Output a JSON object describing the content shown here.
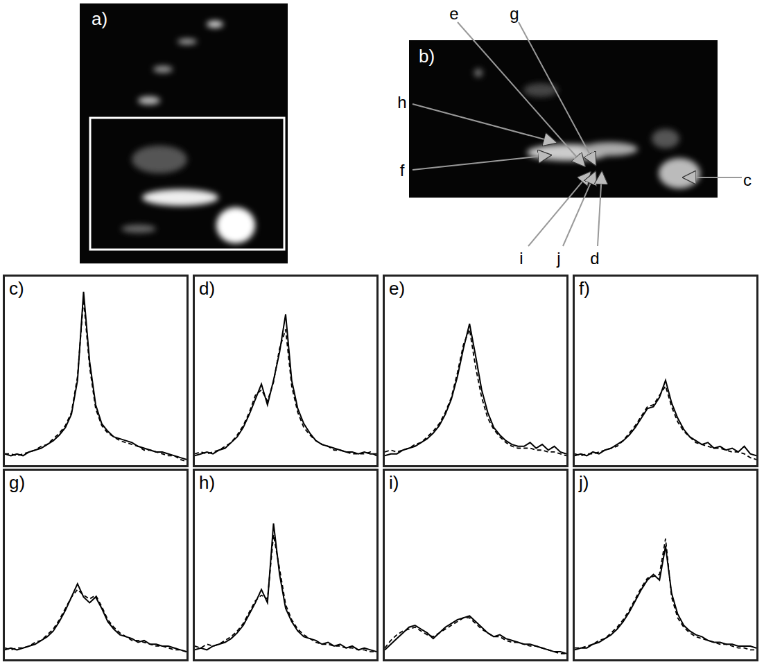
{
  "images": [
    {
      "label": "a)"
    },
    {
      "label": "b)",
      "arrows": [
        "e",
        "g",
        "h",
        "f",
        "c",
        "i",
        "j",
        "d"
      ]
    }
  ],
  "chart_data": [
    {
      "type": "line",
      "title": "c)",
      "x": [
        0,
        1,
        2,
        3,
        4,
        5,
        6,
        7,
        8,
        9,
        10,
        11,
        12,
        13,
        14,
        15,
        16,
        17,
        18,
        19,
        20,
        21,
        22,
        23,
        24,
        25,
        26,
        27,
        28,
        29,
        30
      ],
      "xlim": [
        0,
        30
      ],
      "ylim": [
        0,
        1
      ],
      "tick_labels": false,
      "series": [
        {
          "color": "#000000",
          "line_style": "solid",
          "values": [
            0.06,
            0.05,
            0.06,
            0.05,
            0.07,
            0.08,
            0.09,
            0.11,
            0.13,
            0.16,
            0.2,
            0.27,
            0.45,
            0.92,
            0.55,
            0.32,
            0.22,
            0.18,
            0.15,
            0.14,
            0.13,
            0.12,
            0.1,
            0.09,
            0.08,
            0.07,
            0.07,
            0.06,
            0.05,
            0.04,
            0.03
          ]
        },
        {
          "color": "#000000",
          "line_style": "dashed",
          "values": [
            0.06,
            0.06,
            0.05,
            0.06,
            0.07,
            0.08,
            0.1,
            0.11,
            0.14,
            0.17,
            0.21,
            0.28,
            0.47,
            0.88,
            0.52,
            0.3,
            0.21,
            0.17,
            0.15,
            0.13,
            0.12,
            0.11,
            0.1,
            0.08,
            0.08,
            0.07,
            0.06,
            0.05,
            0.05,
            0.03,
            0.02
          ]
        }
      ]
    },
    {
      "type": "line",
      "title": "d)",
      "x": [
        0,
        1,
        2,
        3,
        4,
        5,
        6,
        7,
        8,
        9,
        10,
        11,
        12,
        13,
        14,
        15,
        16,
        17,
        18,
        19,
        20,
        21,
        22,
        23,
        24,
        25,
        26,
        27,
        28,
        29,
        30
      ],
      "xlim": [
        0,
        30
      ],
      "ylim": [
        0,
        1
      ],
      "tick_labels": false,
      "series": [
        {
          "color": "#000000",
          "line_style": "solid",
          "values": [
            0.05,
            0.06,
            0.07,
            0.06,
            0.08,
            0.09,
            0.12,
            0.15,
            0.2,
            0.27,
            0.35,
            0.43,
            0.32,
            0.45,
            0.6,
            0.8,
            0.45,
            0.3,
            0.22,
            0.17,
            0.13,
            0.11,
            0.1,
            0.09,
            0.08,
            0.07,
            0.07,
            0.06,
            0.07,
            0.06,
            0.06
          ]
        },
        {
          "color": "#000000",
          "line_style": "dashed",
          "values": [
            0.06,
            0.07,
            0.06,
            0.07,
            0.08,
            0.1,
            0.12,
            0.16,
            0.21,
            0.28,
            0.37,
            0.4,
            0.34,
            0.44,
            0.62,
            0.72,
            0.42,
            0.28,
            0.2,
            0.16,
            0.13,
            0.11,
            0.1,
            0.08,
            0.08,
            0.07,
            0.06,
            0.06,
            0.06,
            0.07,
            0.05
          ]
        }
      ]
    },
    {
      "type": "line",
      "title": "e)",
      "x": [
        0,
        1,
        2,
        3,
        4,
        5,
        6,
        7,
        8,
        9,
        10,
        11,
        12,
        13,
        14,
        15,
        16,
        17,
        18,
        19,
        20,
        21,
        22,
        23,
        24,
        25,
        26,
        27,
        28,
        29,
        30
      ],
      "xlim": [
        0,
        30
      ],
      "ylim": [
        0,
        1
      ],
      "tick_labels": false,
      "series": [
        {
          "color": "#000000",
          "line_style": "solid",
          "values": [
            0.05,
            0.06,
            0.06,
            0.08,
            0.09,
            0.1,
            0.12,
            0.14,
            0.17,
            0.21,
            0.27,
            0.35,
            0.47,
            0.62,
            0.75,
            0.58,
            0.4,
            0.28,
            0.2,
            0.16,
            0.13,
            0.11,
            0.1,
            0.1,
            0.12,
            0.09,
            0.11,
            0.08,
            0.1,
            0.07,
            0.06
          ]
        },
        {
          "color": "#000000",
          "line_style": "dashed",
          "values": [
            0.07,
            0.08,
            0.07,
            0.08,
            0.09,
            0.11,
            0.12,
            0.15,
            0.18,
            0.22,
            0.28,
            0.36,
            0.49,
            0.64,
            0.72,
            0.52,
            0.36,
            0.25,
            0.19,
            0.15,
            0.12,
            0.1,
            0.09,
            0.09,
            0.09,
            0.08,
            0.08,
            0.07,
            0.07,
            0.06,
            0.05
          ]
        }
      ]
    },
    {
      "type": "line",
      "title": "f)",
      "x": [
        0,
        1,
        2,
        3,
        4,
        5,
        6,
        7,
        8,
        9,
        10,
        11,
        12,
        13,
        14,
        15,
        16,
        17,
        18,
        19,
        20,
        21,
        22,
        23,
        24,
        25,
        26,
        27,
        28,
        29,
        30
      ],
      "xlim": [
        0,
        30
      ],
      "ylim": [
        0,
        1
      ],
      "tick_labels": false,
      "series": [
        {
          "color": "#000000",
          "line_style": "solid",
          "values": [
            0.05,
            0.06,
            0.05,
            0.07,
            0.06,
            0.08,
            0.09,
            0.11,
            0.13,
            0.16,
            0.2,
            0.25,
            0.3,
            0.31,
            0.36,
            0.45,
            0.33,
            0.25,
            0.19,
            0.15,
            0.13,
            0.11,
            0.12,
            0.09,
            0.1,
            0.08,
            0.09,
            0.07,
            0.1,
            0.06,
            0.05
          ]
        },
        {
          "color": "#000000",
          "line_style": "dashed",
          "values": [
            0.06,
            0.05,
            0.06,
            0.06,
            0.07,
            0.08,
            0.09,
            0.1,
            0.13,
            0.17,
            0.21,
            0.26,
            0.31,
            0.32,
            0.37,
            0.42,
            0.31,
            0.23,
            0.18,
            0.15,
            0.12,
            0.11,
            0.1,
            0.09,
            0.09,
            0.08,
            0.07,
            0.07,
            0.06,
            0.04,
            0.03
          ]
        }
      ]
    },
    {
      "type": "line",
      "title": "g)",
      "x": [
        0,
        1,
        2,
        3,
        4,
        5,
        6,
        7,
        8,
        9,
        10,
        11,
        12,
        13,
        14,
        15,
        16,
        17,
        18,
        19,
        20,
        21,
        22,
        23,
        24,
        25,
        26,
        27,
        28,
        29,
        30
      ],
      "xlim": [
        0,
        30
      ],
      "ylim": [
        0,
        1
      ],
      "tick_labels": false,
      "series": [
        {
          "color": "#000000",
          "line_style": "solid",
          "values": [
            0.05,
            0.06,
            0.05,
            0.06,
            0.07,
            0.08,
            0.1,
            0.12,
            0.15,
            0.2,
            0.26,
            0.33,
            0.4,
            0.33,
            0.3,
            0.33,
            0.27,
            0.2,
            0.16,
            0.13,
            0.12,
            0.11,
            0.09,
            0.1,
            0.08,
            0.08,
            0.07,
            0.07,
            0.06,
            0.05,
            0.04
          ]
        },
        {
          "color": "#000000",
          "line_style": "dashed",
          "values": [
            0.06,
            0.05,
            0.06,
            0.06,
            0.07,
            0.09,
            0.1,
            0.13,
            0.16,
            0.21,
            0.27,
            0.33,
            0.37,
            0.34,
            0.32,
            0.34,
            0.28,
            0.21,
            0.17,
            0.14,
            0.12,
            0.1,
            0.1,
            0.09,
            0.08,
            0.07,
            0.07,
            0.06,
            0.05,
            0.05,
            0.04
          ]
        }
      ]
    },
    {
      "type": "line",
      "title": "h)",
      "x": [
        0,
        1,
        2,
        3,
        4,
        5,
        6,
        7,
        8,
        9,
        10,
        11,
        12,
        13,
        14,
        15,
        16,
        17,
        18,
        19,
        20,
        21,
        22,
        23,
        24,
        25,
        26,
        27,
        28,
        29,
        30
      ],
      "xlim": [
        0,
        30
      ],
      "ylim": [
        0,
        1
      ],
      "tick_labels": false,
      "series": [
        {
          "color": "#000000",
          "line_style": "solid",
          "values": [
            0.05,
            0.06,
            0.05,
            0.07,
            0.08,
            0.09,
            0.11,
            0.14,
            0.18,
            0.24,
            0.3,
            0.37,
            0.3,
            0.72,
            0.45,
            0.27,
            0.2,
            0.15,
            0.12,
            0.11,
            0.1,
            0.08,
            0.09,
            0.07,
            0.08,
            0.06,
            0.07,
            0.05,
            0.06,
            0.05,
            0.04
          ]
        },
        {
          "color": "#000000",
          "line_style": "dashed",
          "values": [
            0.07,
            0.06,
            0.08,
            0.07,
            0.08,
            0.1,
            0.12,
            0.15,
            0.19,
            0.25,
            0.31,
            0.34,
            0.32,
            0.66,
            0.48,
            0.29,
            0.21,
            0.16,
            0.13,
            0.11,
            0.09,
            0.08,
            0.08,
            0.07,
            0.07,
            0.06,
            0.06,
            0.05,
            0.05,
            0.04,
            0.04
          ]
        }
      ]
    },
    {
      "type": "line",
      "title": "i)",
      "x": [
        0,
        1,
        2,
        3,
        4,
        5,
        6,
        7,
        8,
        9,
        10,
        11,
        12,
        13,
        14,
        15,
        16,
        17,
        18,
        19,
        20,
        21,
        22,
        23,
        24,
        25,
        26,
        27,
        28,
        29,
        30
      ],
      "xlim": [
        0,
        30
      ],
      "ylim": [
        0,
        1
      ],
      "tick_labels": false,
      "series": [
        {
          "color": "#000000",
          "line_style": "solid",
          "values": [
            0.05,
            0.08,
            0.11,
            0.14,
            0.17,
            0.18,
            0.16,
            0.14,
            0.11,
            0.14,
            0.17,
            0.19,
            0.21,
            0.22,
            0.23,
            0.2,
            0.17,
            0.14,
            0.12,
            0.13,
            0.11,
            0.1,
            0.09,
            0.08,
            0.08,
            0.07,
            0.06,
            0.05,
            0.04,
            0.04,
            0.03
          ]
        },
        {
          "color": "#000000",
          "line_style": "dashed",
          "values": [
            0.06,
            0.1,
            0.13,
            0.15,
            0.16,
            0.17,
            0.15,
            0.13,
            0.12,
            0.14,
            0.16,
            0.18,
            0.2,
            0.22,
            0.22,
            0.19,
            0.16,
            0.14,
            0.12,
            0.12,
            0.1,
            0.09,
            0.09,
            0.08,
            0.07,
            0.07,
            0.06,
            0.05,
            0.04,
            0.03,
            0.03
          ]
        }
      ]
    },
    {
      "type": "line",
      "title": "j)",
      "x": [
        0,
        1,
        2,
        3,
        4,
        5,
        6,
        7,
        8,
        9,
        10,
        11,
        12,
        13,
        14,
        15,
        16,
        17,
        18,
        19,
        20,
        21,
        22,
        23,
        24,
        25,
        26,
        27,
        28,
        29,
        30
      ],
      "xlim": [
        0,
        30
      ],
      "ylim": [
        0,
        1
      ],
      "tick_labels": false,
      "series": [
        {
          "color": "#000000",
          "line_style": "solid",
          "values": [
            0.05,
            0.06,
            0.06,
            0.08,
            0.09,
            0.11,
            0.13,
            0.16,
            0.2,
            0.25,
            0.31,
            0.37,
            0.42,
            0.45,
            0.42,
            0.6,
            0.35,
            0.24,
            0.18,
            0.15,
            0.13,
            0.12,
            0.1,
            0.09,
            0.09,
            0.08,
            0.08,
            0.07,
            0.07,
            0.07,
            0.06
          ]
        },
        {
          "color": "#000000",
          "line_style": "dashed",
          "values": [
            0.06,
            0.06,
            0.07,
            0.08,
            0.1,
            0.11,
            0.14,
            0.17,
            0.21,
            0.26,
            0.32,
            0.38,
            0.43,
            0.44,
            0.45,
            0.64,
            0.33,
            0.22,
            0.17,
            0.14,
            0.12,
            0.11,
            0.1,
            0.09,
            0.08,
            0.08,
            0.07,
            0.06,
            0.06,
            0.05,
            0.05
          ]
        }
      ]
    }
  ]
}
